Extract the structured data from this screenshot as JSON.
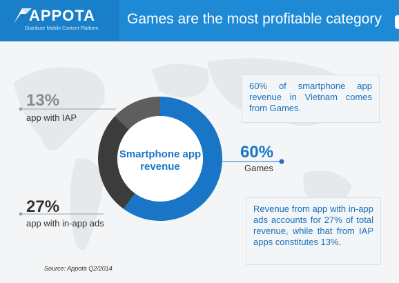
{
  "header": {
    "logo_name": "APPOTA",
    "logo_tagline": "Distribute Mobile Content Platform",
    "title": "Games are the most profitable category"
  },
  "chart_data": {
    "type": "pie",
    "title": "Smartphone app revenue",
    "categories": [
      "Games",
      "app with in-app ads",
      "app with IAP"
    ],
    "values": [
      60,
      27,
      13
    ],
    "colors": [
      "#1976c7",
      "#3c3c3c",
      "#5e5e5e"
    ]
  },
  "labels": {
    "games_pct": "60%",
    "games_name": "Games",
    "ads_pct": "27%",
    "ads_name": "app with in-app ads",
    "iap_pct": "13%",
    "iap_name": "app with IAP"
  },
  "notes": {
    "top": "60% of smartphone app revenue in Vietnam comes from Games.",
    "bottom": "Revenue from app with in-app ads accounts for 27% of total revenue, while that from IAP apps constitutes 13%."
  },
  "source": "Source: Appota Q2/2014"
}
